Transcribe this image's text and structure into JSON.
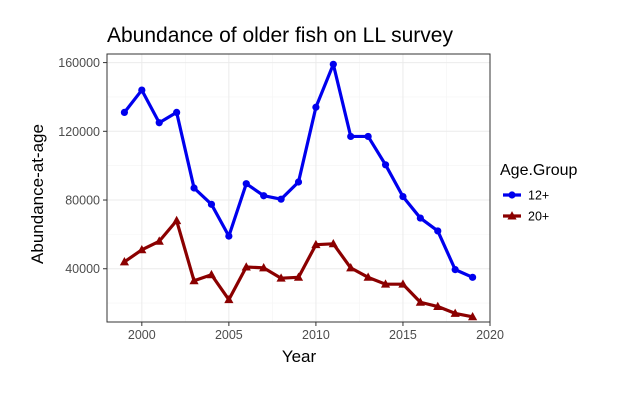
{
  "chart_data": {
    "type": "line",
    "title": "Abundance of older fish on LL survey",
    "xlabel": "Year",
    "ylabel": "Abundance-at-age",
    "xlim": [
      1998,
      2020
    ],
    "ylim": [
      9000,
      165000
    ],
    "xticks": [
      2000,
      2005,
      2010,
      2015,
      2020
    ],
    "yticks": [
      40000,
      80000,
      120000,
      160000
    ],
    "grid": true,
    "legend": {
      "title": "Age.Group",
      "placement": "right"
    },
    "x": [
      1999,
      2000,
      2001,
      2002,
      2003,
      2004,
      2005,
      2006,
      2007,
      2008,
      2009,
      2010,
      2011,
      2012,
      2013,
      2014,
      2015,
      2016,
      2017,
      2018,
      2019
    ],
    "series": [
      {
        "name": "12+",
        "color": "#0000ee",
        "marker": "circle",
        "values": [
          131000,
          144000,
          125000,
          131000,
          87000,
          77500,
          59000,
          89500,
          82500,
          80500,
          90500,
          134000,
          159000,
          117000,
          117000,
          100500,
          82000,
          69500,
          62000,
          39500,
          35000
        ]
      },
      {
        "name": "20+",
        "color": "#8b0000",
        "marker": "triangle",
        "values": [
          44000,
          51000,
          56000,
          68000,
          33000,
          36500,
          22000,
          41000,
          40500,
          34500,
          35000,
          54000,
          54500,
          40500,
          35000,
          31000,
          31000,
          20500,
          18000,
          14000,
          12000
        ]
      }
    ]
  }
}
